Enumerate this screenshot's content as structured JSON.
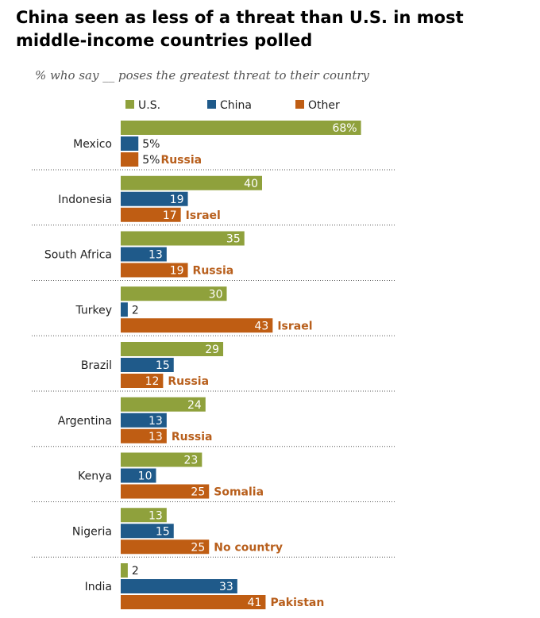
{
  "title": "China seen as less of a threat than U.S. in most middle-income countries polled",
  "subtitle": "% who say __ poses the greatest threat to their country",
  "colors": {
    "us": "#8fa13c",
    "china": "#1f5a8a",
    "other": "#bf5d13"
  },
  "chart_data": {
    "type": "bar",
    "orientation": "horizontal",
    "grid": false,
    "legend": "top",
    "categories": [
      "Mexico",
      "Indonesia",
      "South Africa",
      "Turkey",
      "Brazil",
      "Argentina",
      "Kenya",
      "Nigeria",
      "India"
    ],
    "series": [
      {
        "name": "U.S.",
        "values": [
          68,
          40,
          35,
          30,
          29,
          24,
          23,
          13,
          2
        ]
      },
      {
        "name": "China",
        "values": [
          5,
          19,
          13,
          2,
          15,
          13,
          10,
          15,
          33
        ]
      },
      {
        "name": "Other",
        "values": [
          5,
          17,
          19,
          43,
          12,
          13,
          25,
          25,
          41
        ],
        "labels": [
          "Russia",
          "Israel",
          "Russia",
          "Israel",
          "Russia",
          "Russia",
          "Somalia",
          "No country",
          "Pakistan"
        ]
      }
    ],
    "xlim": [
      0,
      68
    ]
  }
}
